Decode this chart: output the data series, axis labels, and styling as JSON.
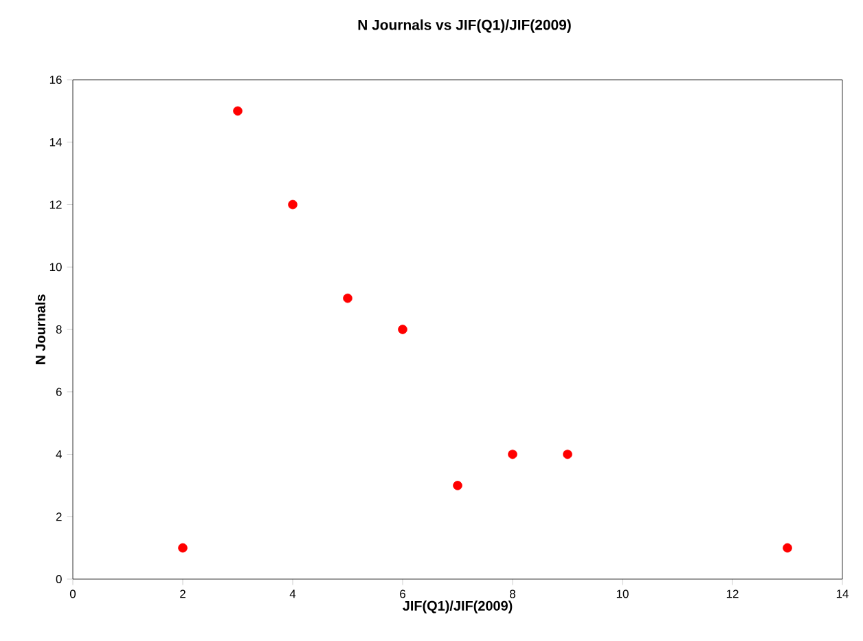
{
  "chart_data": {
    "type": "scatter",
    "title": "N Journals vs JIF(Q1)/JIF(2009)",
    "xlabel": "JIF(Q1)/JIF(2009)",
    "ylabel": "N Journals",
    "x": [
      2,
      3,
      4,
      5,
      6,
      7,
      8,
      9,
      13
    ],
    "series": [
      {
        "color": "#ff0000",
        "values": [
          1,
          15,
          12,
          9,
          8,
          3,
          4,
          4,
          1
        ]
      }
    ],
    "xlim": [
      0,
      14
    ],
    "ylim": [
      0,
      16
    ],
    "xticks": [
      0,
      2,
      4,
      6,
      8,
      10,
      12,
      14
    ],
    "yticks": [
      0,
      2,
      4,
      6,
      8,
      10,
      12,
      14,
      16
    ],
    "marker": "circle",
    "grid": false
  }
}
